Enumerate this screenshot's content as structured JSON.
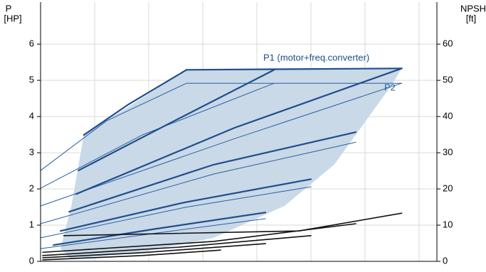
{
  "chart_data": {
    "type": "line",
    "ylabel": "P",
    "yunit": "[HP]",
    "y2label": "NPSH",
    "y2unit": "[ft]",
    "xlim": [
      0,
      7.33
    ],
    "xticks": [
      0,
      1,
      2,
      3,
      4,
      5,
      6,
      7
    ],
    "ylim": [
      0,
      7.16
    ],
    "yticks": [
      0,
      1,
      2,
      3,
      4,
      5,
      6
    ],
    "y2lim": [
      0,
      71.6
    ],
    "y2ticks": [
      0,
      10,
      20,
      30,
      40,
      50,
      60
    ],
    "grid": true,
    "area_color": "#c9d9e8",
    "operating_range": {
      "x": [
        0.8,
        2.7,
        6.68,
        6.48,
        5.43,
        4.51,
        3.2,
        1.88,
        0.57,
        0.37,
        0.57
      ],
      "values": [
        3.49,
        5.29,
        5.33,
        4.84,
        2.67,
        1.53,
        0.65,
        0.25,
        0.06,
        0.35,
        1.53
      ]
    },
    "p1_color": "#1f4e8c",
    "p1_curves": [
      {
        "x": [
          0.8,
          1.62,
          2.7
        ],
        "values": [
          3.49,
          4.33,
          5.29
        ]
      },
      {
        "x": [
          2.7,
          6.68
        ],
        "values": [
          5.29,
          5.33
        ]
      },
      {
        "x": [
          0.7,
          2.5,
          4.32
        ],
        "values": [
          2.51,
          3.9,
          5.29
        ]
      },
      {
        "x": [
          0.66,
          3.59,
          6.68
        ],
        "values": [
          1.86,
          3.69,
          5.33
        ]
      },
      {
        "x": [
          0.53,
          3.2,
          5.83
        ],
        "values": [
          1.37,
          2.67,
          3.57
        ]
      },
      {
        "x": [
          0.37,
          2.67,
          5.0
        ],
        "values": [
          0.84,
          1.63,
          2.27
        ]
      },
      {
        "x": [
          0.24,
          2.14,
          4.16
        ],
        "values": [
          0.45,
          0.9,
          1.35
        ]
      }
    ],
    "p2_color": "#2b5f9e",
    "p2_curves": [
      {
        "x": [
          0,
          1.22,
          2.7,
          6.68
        ],
        "values": [
          2.51,
          3.88,
          4.92,
          4.92
        ]
      },
      {
        "x": [
          0,
          1.88,
          4.32
        ],
        "values": [
          2.02,
          3.49,
          4.92
        ]
      },
      {
        "x": [
          0,
          3.59,
          6.68
        ],
        "values": [
          1.53,
          3.39,
          4.92
        ]
      },
      {
        "x": [
          0,
          3.2,
          5.83
        ],
        "values": [
          1.04,
          2.41,
          3.29
        ]
      },
      {
        "x": [
          0,
          2.67,
          5.0
        ],
        "values": [
          0.65,
          1.49,
          2.06
        ]
      },
      {
        "x": [
          0,
          2.14,
          4.16
        ],
        "values": [
          0.35,
          0.78,
          1.18
        ]
      }
    ],
    "npsh_color": "#111111",
    "npsh_curves": [
      {
        "x": [
          0.43,
          4.78,
          6.68
        ],
        "values": [
          7.1,
          8.4,
          13.3
        ]
      },
      {
        "x": [
          0.04,
          3.2,
          5.83
        ],
        "values": [
          2.5,
          5.5,
          10.4
        ]
      },
      {
        "x": [
          0.04,
          2.54,
          5.0
        ],
        "values": [
          1.6,
          3.9,
          7.1
        ]
      },
      {
        "x": [
          0.04,
          1.88,
          4.16
        ],
        "values": [
          1.0,
          2.4,
          4.9
        ]
      },
      {
        "x": [
          0.04,
          1.88,
          3.33
        ],
        "values": [
          0.4,
          1.6,
          3.1
        ]
      }
    ],
    "annotations": [
      {
        "text": "P1 (motor+freq.converter)"
      },
      {
        "text": "P2"
      }
    ]
  }
}
